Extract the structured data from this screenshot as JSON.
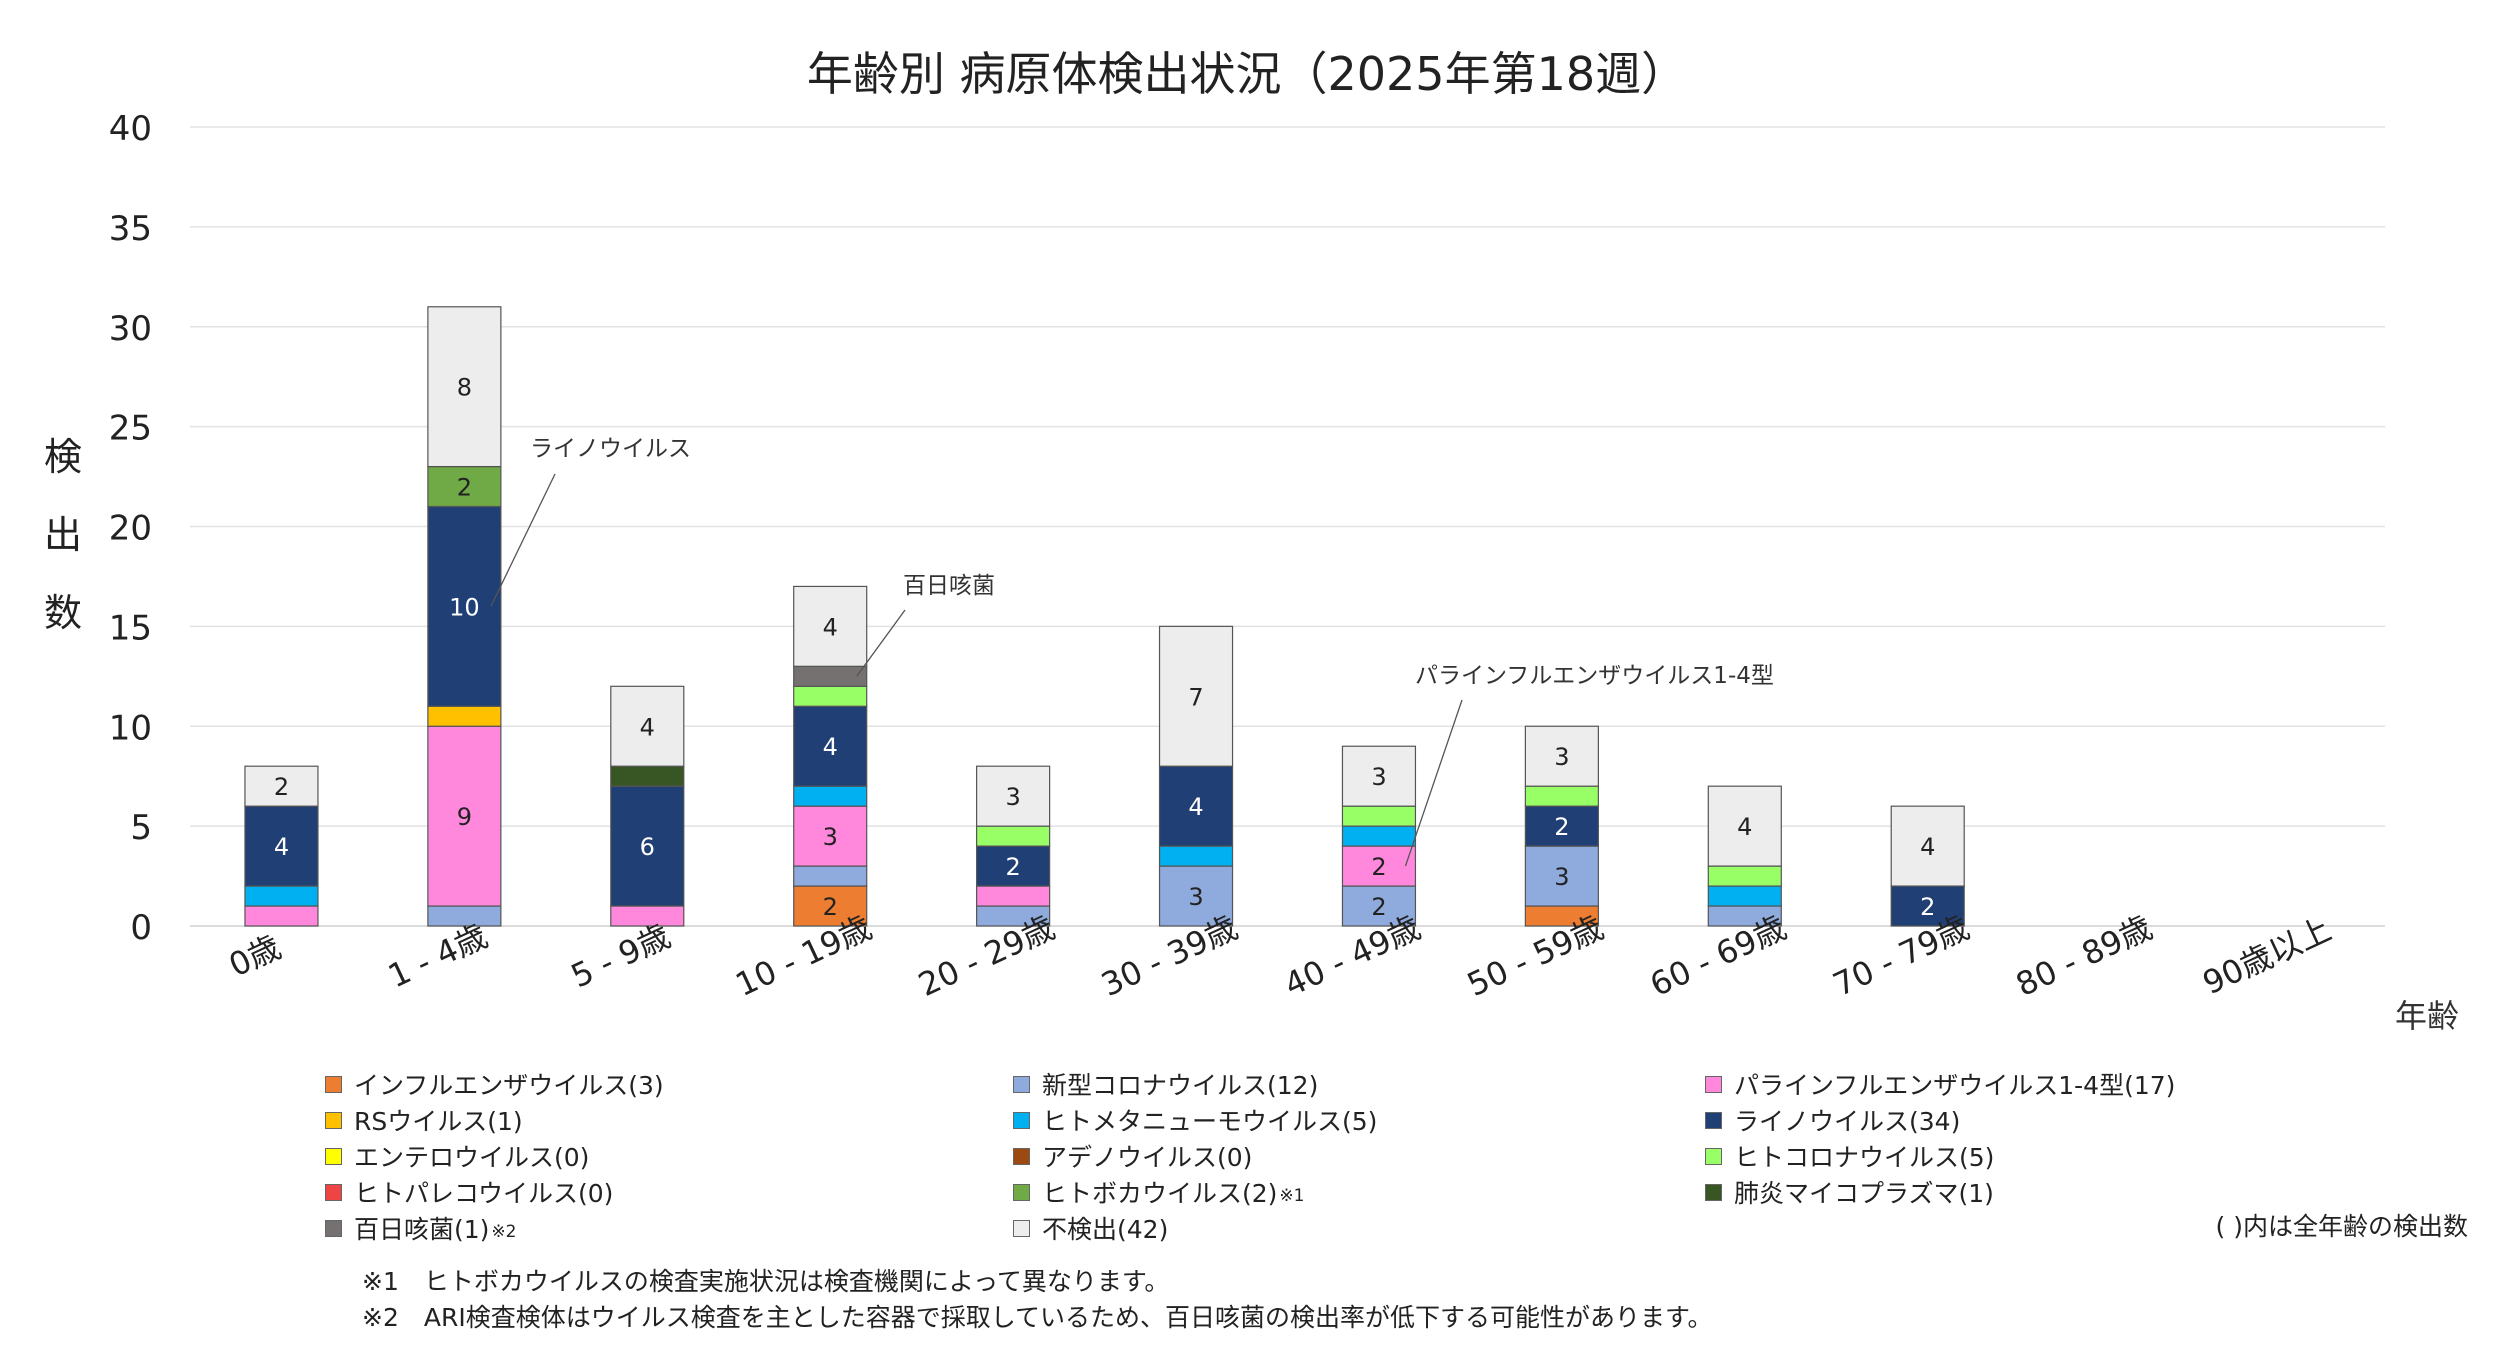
{
  "chart_data": {
    "type": "bar",
    "stacked": true,
    "title": "年齢別 病原体検出状況（2025年第18週）",
    "ylabel": "検出数",
    "xlabel": "年齢",
    "ylim": [
      0,
      40
    ],
    "yticks": [
      "0",
      "5",
      "10",
      "15",
      "20",
      "25",
      "30",
      "35",
      "40"
    ],
    "grid": true,
    "categories": [
      "0歳",
      "1 - 4歳",
      "5 - 9歳",
      "10 - 19歳",
      "20 - 29歳",
      "30 - 39歳",
      "40 - 49歳",
      "50 - 59歳",
      "60 - 69歳",
      "70 - 79歳",
      "80 - 89歳",
      "90歳以上"
    ],
    "series": [
      {
        "name": "インフルエンザウイルス",
        "total": "(3)",
        "color": "#ED7D31",
        "values": [
          0,
          0,
          0,
          2,
          0,
          0,
          0,
          1,
          0,
          0,
          0,
          0
        ]
      },
      {
        "name": "新型コロナウイルス",
        "total": "(12)",
        "color": "#8FAADC",
        "values": [
          0,
          1,
          0,
          1,
          1,
          3,
          2,
          3,
          1,
          0,
          0,
          0
        ]
      },
      {
        "name": "パラインフルエンザウイルス1-4型",
        "total": "(17)",
        "color": "#FF88DD",
        "values": [
          1,
          9,
          1,
          3,
          1,
          0,
          2,
          0,
          0,
          0,
          0,
          0
        ]
      },
      {
        "name": "RSウイルス",
        "total": "(1)",
        "color": "#FFC000",
        "values": [
          0,
          1,
          0,
          0,
          0,
          0,
          0,
          0,
          0,
          0,
          0,
          0
        ]
      },
      {
        "name": "ヒトメタニューモウイルス",
        "total": "(5)",
        "color": "#00B0F0",
        "values": [
          1,
          0,
          0,
          1,
          0,
          1,
          1,
          0,
          1,
          0,
          0,
          0
        ]
      },
      {
        "name": "ライノウイルス",
        "total": "(34)",
        "color": "#203F74",
        "values": [
          4,
          10,
          6,
          4,
          2,
          4,
          0,
          2,
          0,
          2,
          0,
          0
        ]
      },
      {
        "name": "エンテロウイルス",
        "total": "(0)",
        "color": "#FFFF00",
        "values": [
          0,
          0,
          0,
          0,
          0,
          0,
          0,
          0,
          0,
          0,
          0,
          0
        ]
      },
      {
        "name": "アデノウイルス",
        "total": "(0)",
        "color": "#9C4A12",
        "values": [
          0,
          0,
          0,
          0,
          0,
          0,
          0,
          0,
          0,
          0,
          0,
          0
        ]
      },
      {
        "name": "ヒトコロナウイルス",
        "total": "(5)",
        "color": "#99FF66",
        "values": [
          0,
          0,
          0,
          1,
          1,
          0,
          1,
          1,
          1,
          0,
          0,
          0
        ]
      },
      {
        "name": "ヒトパレコウイルス",
        "total": "(0)",
        "color": "#EE4444",
        "values": [
          0,
          0,
          0,
          0,
          0,
          0,
          0,
          0,
          0,
          0,
          0,
          0
        ]
      },
      {
        "name": "ヒトボカウイルス",
        "total": "(2)",
        "color": "#6FAA46",
        "note": "※1",
        "values": [
          0,
          2,
          0,
          0,
          0,
          0,
          0,
          0,
          0,
          0,
          0,
          0
        ]
      },
      {
        "name": "肺炎マイコプラズマ",
        "total": "(1)",
        "color": "#375623",
        "values": [
          0,
          0,
          1,
          0,
          0,
          0,
          0,
          0,
          0,
          0,
          0,
          0
        ]
      },
      {
        "name": "百日咳菌",
        "total": "(1)",
        "color": "#767171",
        "note": "※2",
        "values": [
          0,
          0,
          0,
          1,
          0,
          0,
          0,
          0,
          0,
          0,
          0,
          0
        ]
      },
      {
        "name": "不検出",
        "total": "(42)",
        "color": "#EDEDED",
        "values": [
          2,
          8,
          4,
          4,
          3,
          7,
          3,
          3,
          4,
          4,
          0,
          0
        ]
      }
    ],
    "data_labels": [
      {
        "category": "0歳",
        "series": "ライノウイルス",
        "text": "4"
      },
      {
        "category": "0歳",
        "series": "不検出",
        "text": "2"
      },
      {
        "category": "1 - 4歳",
        "series": "パラインフルエンザウイルス1-4型",
        "text": "9"
      },
      {
        "category": "1 - 4歳",
        "series": "ライノウイルス",
        "text": "10"
      },
      {
        "category": "1 - 4歳",
        "series": "ヒトボカウイルス",
        "text": "2"
      },
      {
        "category": "1 - 4歳",
        "series": "不検出",
        "text": "8"
      },
      {
        "category": "5 - 9歳",
        "series": "ライノウイルス",
        "text": "6"
      },
      {
        "category": "5 - 9歳",
        "series": "不検出",
        "text": "4"
      },
      {
        "category": "10 - 19歳",
        "series": "インフルエンザウイルス",
        "text": "2"
      },
      {
        "category": "10 - 19歳",
        "series": "パラインフルエンザウイルス1-4型",
        "text": "3"
      },
      {
        "category": "10 - 19歳",
        "series": "ライノウイルス",
        "text": "4"
      },
      {
        "category": "10 - 19歳",
        "series": "不検出",
        "text": "4"
      },
      {
        "category": "20 - 29歳",
        "series": "ライノウイルス",
        "text": "2"
      },
      {
        "category": "20 - 29歳",
        "series": "不検出",
        "text": "3"
      },
      {
        "category": "30 - 39歳",
        "series": "新型コロナウイルス",
        "text": "3"
      },
      {
        "category": "30 - 39歳",
        "series": "ライノウイルス",
        "text": "4"
      },
      {
        "category": "30 - 39歳",
        "series": "不検出",
        "text": "7"
      },
      {
        "category": "40 - 49歳",
        "series": "新型コロナウイルス",
        "text": "2"
      },
      {
        "category": "40 - 49歳",
        "series": "パラインフルエンザウイルス1-4型",
        "text": "2"
      },
      {
        "category": "40 - 49歳",
        "series": "不検出",
        "text": "3"
      },
      {
        "category": "50 - 59歳",
        "series": "新型コロナウイルス",
        "text": "3"
      },
      {
        "category": "50 - 59歳",
        "series": "ライノウイルス",
        "text": "2"
      },
      {
        "category": "50 - 59歳",
        "series": "不検出",
        "text": "3"
      },
      {
        "category": "60 - 69歳",
        "series": "不検出",
        "text": "4"
      },
      {
        "category": "70 - 79歳",
        "series": "ライノウイルス",
        "text": "2"
      },
      {
        "category": "70 - 79歳",
        "series": "不検出",
        "text": "4"
      }
    ],
    "callouts": [
      {
        "text": "ライノウイルス",
        "category": "1 - 4歳",
        "series": "ライノウイルス"
      },
      {
        "text": "百日咳菌",
        "category": "10 - 19歳",
        "series": "百日咳菌"
      },
      {
        "text": "パラインフルエンザウイルス1-4型",
        "category": "40 - 49歳",
        "series": "パラインフルエンザウイルス1-4型"
      }
    ]
  },
  "notes": {
    "paren_note": "( )内は全年齢の検出数",
    "footnote1": "※1　ヒトボカウイルスの検査実施状況は検査機関によって異なります。",
    "footnote2": "※2　ARI検査検体はウイルス検査を主とした容器で採取しているため、百日咳菌の検出率が低下する可能性があります。"
  }
}
